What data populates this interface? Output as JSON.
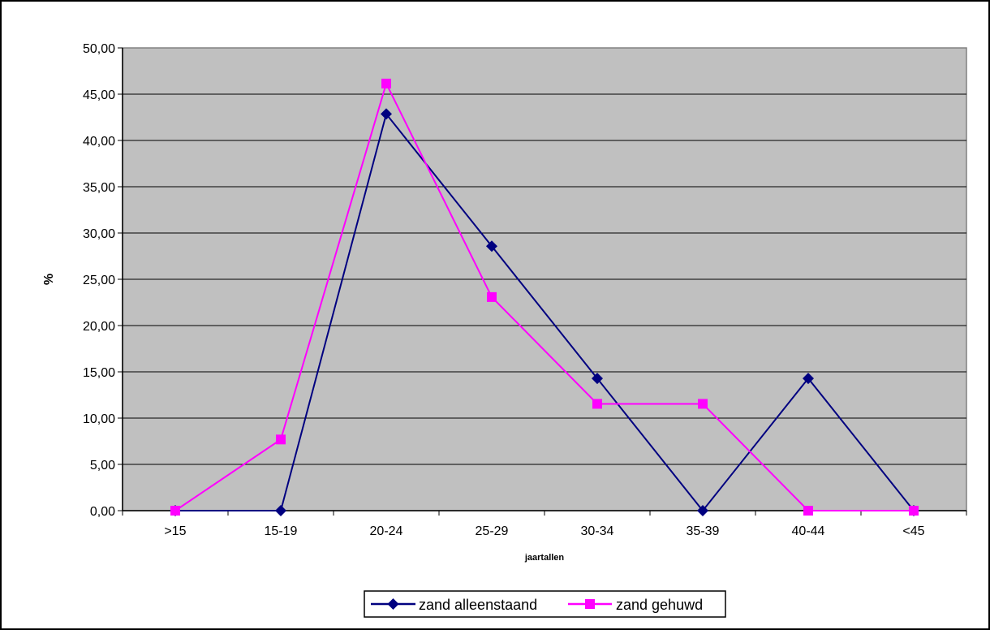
{
  "chart_data": {
    "type": "line",
    "categories": [
      ">15",
      "15-19",
      "20-24",
      "25-29",
      "30-34",
      "35-39",
      "40-44",
      "<45"
    ],
    "series": [
      {
        "name": "zand alleenstaand",
        "values": [
          0,
          0,
          42.86,
          28.57,
          14.29,
          0,
          14.29,
          0
        ],
        "color": "#000080",
        "marker": "diamond"
      },
      {
        "name": "zand gehuwd",
        "values": [
          0,
          7.69,
          46.15,
          23.08,
          11.54,
          11.54,
          0,
          0
        ],
        "color": "#FF00FF",
        "marker": "square"
      }
    ],
    "title": "",
    "xlabel": "jaartallen",
    "ylabel": "%",
    "ylim": [
      0,
      50
    ],
    "ytick_step": 5,
    "ytick_labels": [
      "0,00",
      "5,00",
      "10,00",
      "15,00",
      "20,00",
      "25,00",
      "30,00",
      "35,00",
      "40,00",
      "45,00",
      "50,00"
    ],
    "plot_background": "#C0C0C0",
    "grid": true,
    "legend_position": "bottom"
  }
}
